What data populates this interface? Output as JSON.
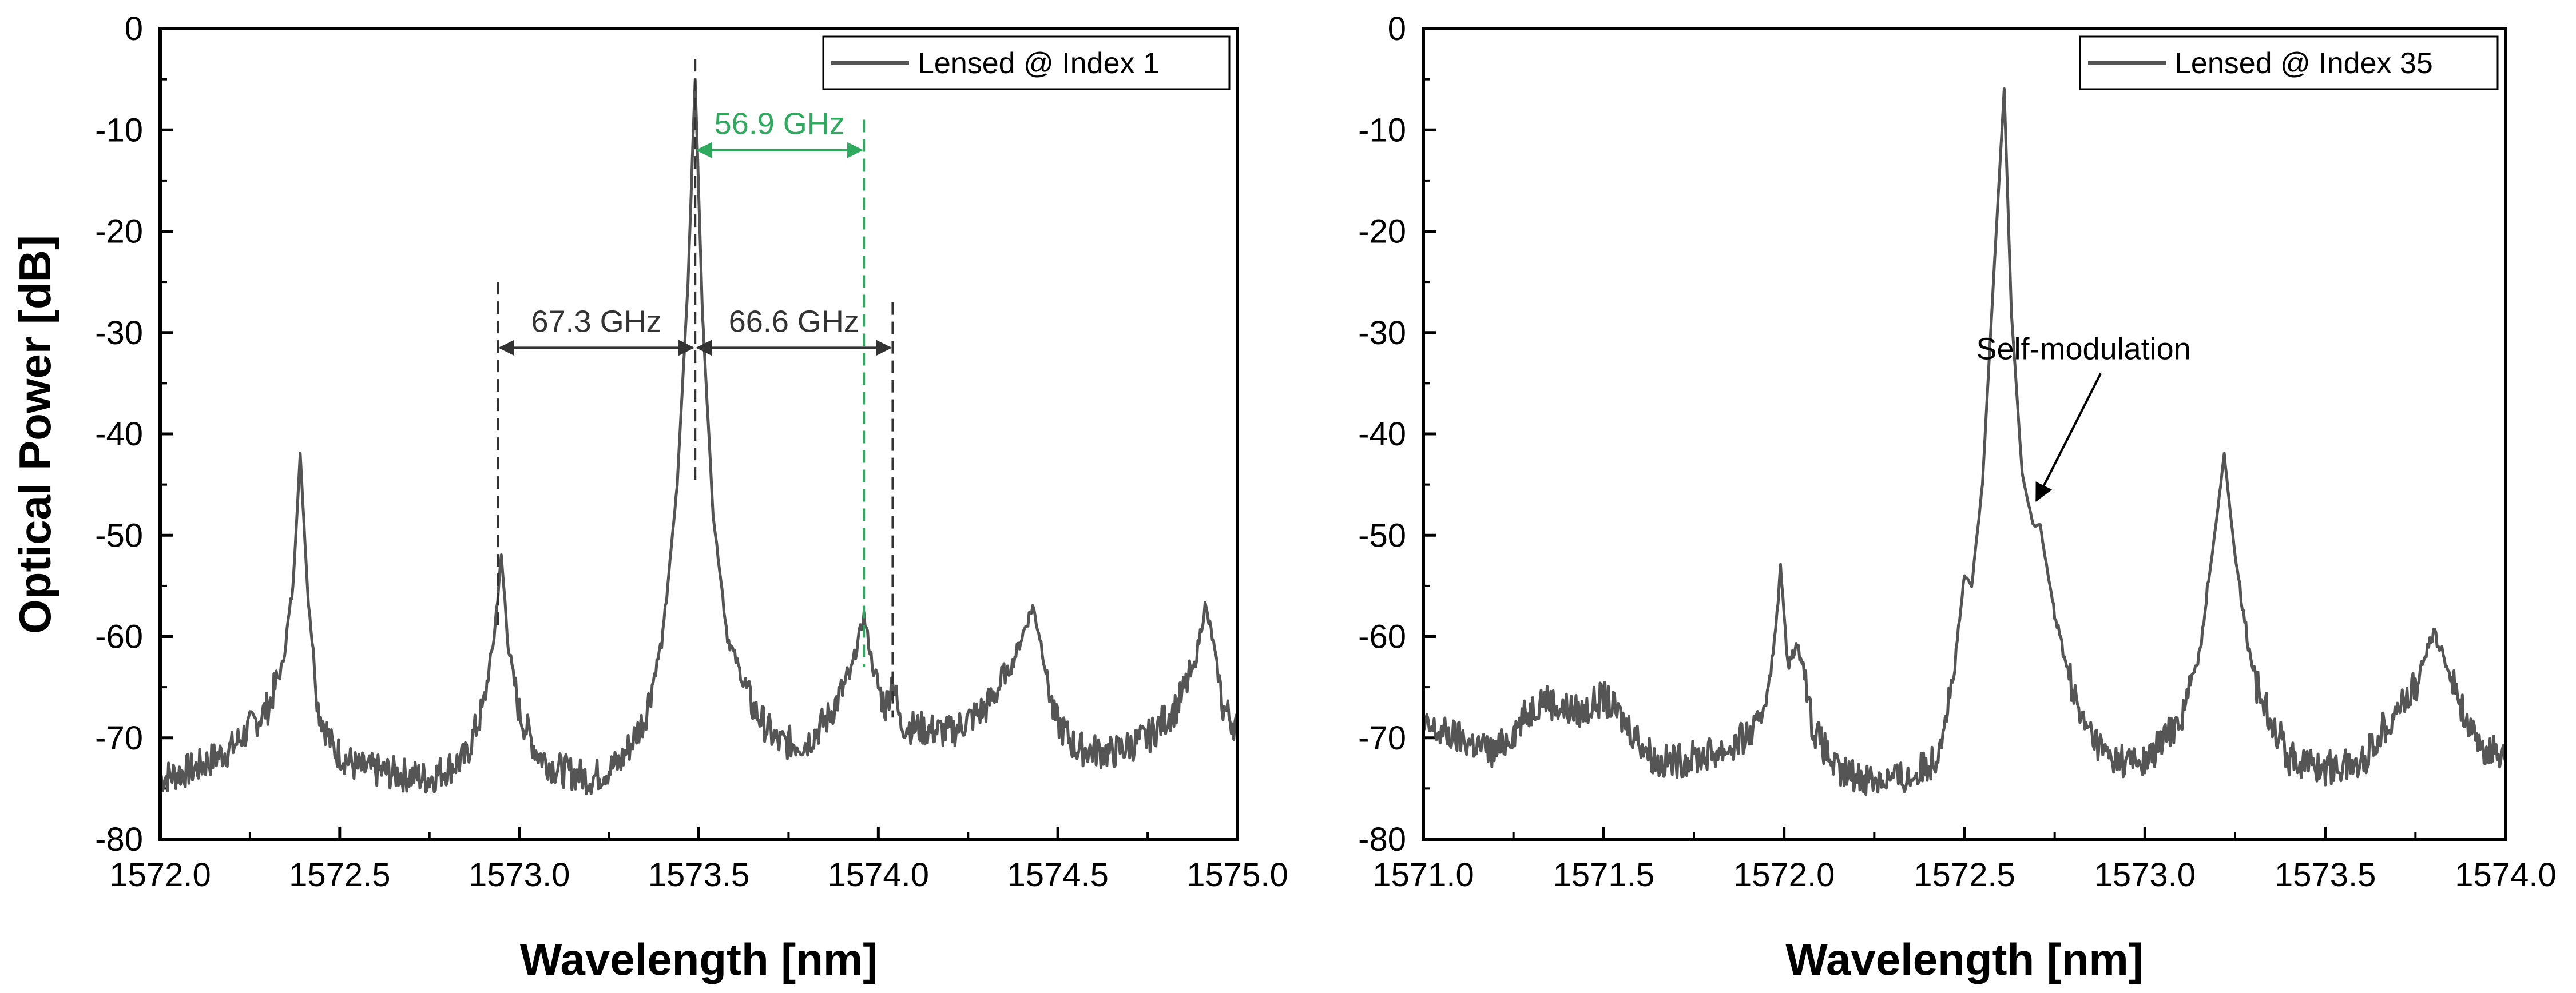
{
  "figure": {
    "ylabel": "Optical Power [dB]",
    "colors": {
      "trace": "#555555",
      "annotation": "#333333",
      "highlight": "#2eaa5e",
      "axis": "#000000"
    }
  },
  "chart_data": [
    {
      "type": "line",
      "xlabel": "Wavelength [nm]",
      "ylabel": "Optical Power [dB]",
      "xlim": [
        1572.0,
        1575.0
      ],
      "ylim": [
        -80,
        0
      ],
      "xticks": [
        "1572.0",
        "1572.5",
        "1573.0",
        "1573.5",
        "1574.0",
        "1574.5",
        "1575.0"
      ],
      "yticks": [
        "0",
        "-10",
        "-20",
        "-30",
        "-40",
        "-50",
        "-60",
        "-70",
        "-80"
      ],
      "legend": "top-right",
      "grid": false,
      "series": [
        {
          "name": "Lensed @ Index 1",
          "x": [
            1572.0,
            1572.1,
            1572.2,
            1572.3,
            1572.34,
            1572.37,
            1572.39,
            1572.41,
            1572.44,
            1572.48,
            1572.55,
            1572.65,
            1572.75,
            1572.85,
            1572.9,
            1572.93,
            1572.95,
            1572.97,
            1573.0,
            1573.05,
            1573.1,
            1573.2,
            1573.28,
            1573.35,
            1573.4,
            1573.44,
            1573.47,
            1573.49,
            1573.51,
            1573.54,
            1573.58,
            1573.65,
            1573.72,
            1573.8,
            1573.86,
            1573.92,
            1573.96,
            1573.99,
            1574.02,
            1574.04,
            1574.06,
            1574.1,
            1574.2,
            1574.3,
            1574.37,
            1574.41,
            1574.43,
            1574.45,
            1574.49,
            1574.55,
            1574.65,
            1574.75,
            1574.83,
            1574.88,
            1574.91,
            1574.93,
            1574.96,
            1575.0
          ],
          "y": [
            -74,
            -73,
            -71,
            -67,
            -63,
            -55,
            -42,
            -55,
            -67,
            -71,
            -73,
            -73.5,
            -74,
            -72,
            -67,
            -60,
            -52,
            -61,
            -67.5,
            -71.5,
            -73,
            -74,
            -72.5,
            -68,
            -60,
            -45,
            -25,
            -5,
            -28,
            -48,
            -60,
            -67,
            -70.5,
            -70.5,
            -68,
            -64,
            -58,
            -64,
            -67,
            -64,
            -68.5,
            -69,
            -69.5,
            -67,
            -63,
            -59,
            -57,
            -60,
            -68,
            -71,
            -71.5,
            -70,
            -67,
            -63,
            -57,
            -60,
            -67,
            -69
          ]
        }
      ],
      "annotations": [
        {
          "text": "67.3 GHz",
          "from": 1572.94,
          "to": 1573.49,
          "y": -31.5
        },
        {
          "text": "66.6 GHz",
          "from": 1573.49,
          "to": 1574.04,
          "y": -31.5
        },
        {
          "text": "56.9 GHz",
          "from": 1573.49,
          "to": 1573.96,
          "y": -12,
          "highlight": true
        }
      ],
      "markers": [
        {
          "x": 1572.94,
          "from": -25,
          "to": -59
        },
        {
          "x": 1573.49,
          "from": -3,
          "to": -45
        },
        {
          "x": 1574.04,
          "from": -27,
          "to": -68
        },
        {
          "x": 1573.96,
          "from": -9,
          "to": -63,
          "highlight": true
        }
      ]
    },
    {
      "type": "line",
      "xlabel": "Wavelength [nm]",
      "xlim": [
        1571.0,
        1574.0
      ],
      "ylim": [
        -80,
        0
      ],
      "xticks": [
        "1571.0",
        "1571.5",
        "1572.0",
        "1572.5",
        "1573.0",
        "1573.5",
        "1574.0"
      ],
      "yticks": [
        "0",
        "-10",
        "-20",
        "-30",
        "-40",
        "-50",
        "-60",
        "-70",
        "-80"
      ],
      "legend": "top-right",
      "grid": false,
      "series": [
        {
          "name": "Lensed @ Index 35",
          "x": [
            1571.0,
            1571.1,
            1571.2,
            1571.28,
            1571.33,
            1571.38,
            1571.44,
            1571.5,
            1571.56,
            1571.65,
            1571.75,
            1571.85,
            1571.93,
            1571.97,
            1571.99,
            1572.01,
            1572.03,
            1572.05,
            1572.08,
            1572.15,
            1572.25,
            1572.35,
            1572.42,
            1572.47,
            1572.5,
            1572.52,
            1572.55,
            1572.58,
            1572.61,
            1572.63,
            1572.66,
            1572.69,
            1572.71,
            1572.75,
            1572.82,
            1572.9,
            1573.0,
            1573.1,
            1573.15,
            1573.2,
            1573.22,
            1573.25,
            1573.3,
            1573.4,
            1573.5,
            1573.6,
            1573.68,
            1573.75,
            1573.8,
            1573.85,
            1573.92,
            1574.0
          ],
          "y": [
            -69,
            -70,
            -71.5,
            -68,
            -66,
            -67,
            -67.5,
            -66,
            -68.5,
            -72.5,
            -72,
            -71,
            -69,
            -62,
            -53,
            -63,
            -61,
            -62,
            -69,
            -73.5,
            -74,
            -74,
            -72,
            -64,
            -54,
            -55,
            -45,
            -25,
            -6,
            -28,
            -44,
            -49,
            -49,
            -58,
            -68,
            -72,
            -72.5,
            -68,
            -62,
            -48,
            -42,
            -52,
            -64,
            -72,
            -73,
            -72.5,
            -68,
            -65,
            -59.5,
            -64,
            -71,
            -71.5
          ]
        }
      ],
      "annotations": [
        {
          "text": "Self-modulation",
          "arrow_to": [
            1572.69,
            -47
          ],
          "label_at": [
            1572.83,
            -31.5
          ]
        }
      ]
    }
  ]
}
